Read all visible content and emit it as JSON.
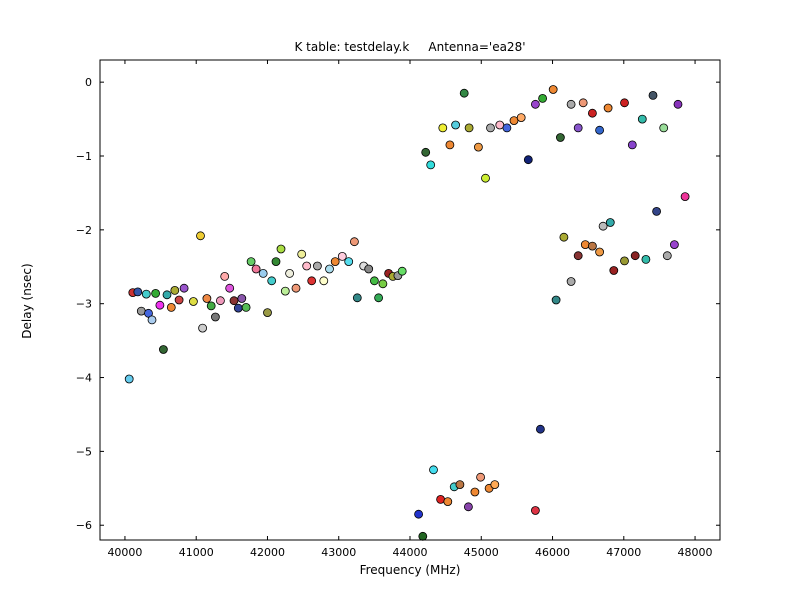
{
  "figure": {
    "title": "K table: testdelay.k     Antenna='ea28'",
    "background_color": "#ffffff",
    "frame_color": "#000000"
  },
  "chart_data": {
    "type": "scatter",
    "title": "K table: testdelay.k     Antenna='ea28'",
    "xlabel": "Frequency (MHz)",
    "ylabel": "Delay (nsec)",
    "xlim": [
      39650,
      48350
    ],
    "ylim": [
      -6.2,
      0.3
    ],
    "grid": false,
    "legend": null,
    "marker": {
      "shape": "circle",
      "radius_px": 4,
      "edge_color": "#000000"
    },
    "xticks": {
      "values": [
        40000,
        41000,
        42000,
        43000,
        44000,
        45000,
        46000,
        47000,
        48000
      ],
      "labels": [
        "40000",
        "41000",
        "42000",
        "43000",
        "44000",
        "45000",
        "46000",
        "47000",
        "48000"
      ]
    },
    "yticks": {
      "values": [
        0,
        -1,
        -2,
        -3,
        -4,
        -5,
        -6
      ],
      "labels": [
        "0",
        "−1",
        "−2",
        "−3",
        "−4",
        "−5",
        "−6"
      ]
    },
    "points": [
      [
        40060,
        -4.02,
        "#66ccee"
      ],
      [
        40110,
        -2.85,
        "#cc3333"
      ],
      [
        40180,
        -2.84,
        "#3355aa"
      ],
      [
        40230,
        -3.1,
        "#999999"
      ],
      [
        40300,
        -2.87,
        "#44cccc"
      ],
      [
        40330,
        -3.13,
        "#4466dd"
      ],
      [
        40380,
        -3.22,
        "#aaccee"
      ],
      [
        40430,
        -2.86,
        "#33aa33"
      ],
      [
        40490,
        -3.02,
        "#ee33ee"
      ],
      [
        40540,
        -3.62,
        "#336633"
      ],
      [
        40590,
        -2.88,
        "#33aaaa"
      ],
      [
        40650,
        -3.05,
        "#ee8833"
      ],
      [
        40700,
        -2.82,
        "#aaaa33"
      ],
      [
        40760,
        -2.95,
        "#cc4444"
      ],
      [
        40830,
        -2.79,
        "#9955cc"
      ],
      [
        40960,
        -2.97,
        "#dddd44"
      ],
      [
        41060,
        -2.08,
        "#eecc33"
      ],
      [
        41090,
        -3.33,
        "#cccccc"
      ],
      [
        41150,
        -2.93,
        "#ee8844"
      ],
      [
        41210,
        -3.03,
        "#44aa44"
      ],
      [
        41270,
        -3.18,
        "#777777"
      ],
      [
        41340,
        -2.96,
        "#ee99bb"
      ],
      [
        41400,
        -2.63,
        "#ffaaaa"
      ],
      [
        41470,
        -2.79,
        "#dd55dd"
      ],
      [
        41530,
        -2.96,
        "#883333"
      ],
      [
        41590,
        -3.06,
        "#334499"
      ],
      [
        41640,
        -2.93,
        "#8855aa"
      ],
      [
        41700,
        -3.05,
        "#55bb55"
      ],
      [
        41770,
        -2.43,
        "#66cc66"
      ],
      [
        41840,
        -2.53,
        "#ee7799"
      ],
      [
        41940,
        -2.59,
        "#99ccee"
      ],
      [
        42000,
        -3.12,
        "#999944"
      ],
      [
        42060,
        -2.69,
        "#44cccc"
      ],
      [
        42120,
        -2.43,
        "#338833"
      ],
      [
        42190,
        -2.26,
        "#aadd44"
      ],
      [
        42250,
        -2.83,
        "#bbee99"
      ],
      [
        42310,
        -2.59,
        "#eeeedd"
      ],
      [
        42400,
        -2.79,
        "#ee9977"
      ],
      [
        42480,
        -2.33,
        "#eeee99"
      ],
      [
        42550,
        -2.49,
        "#ffbbcc"
      ],
      [
        42620,
        -2.69,
        "#dd3333"
      ],
      [
        42700,
        -2.49,
        "#aaaaaa"
      ],
      [
        42790,
        -2.69,
        "#ffffcc"
      ],
      [
        42870,
        -2.53,
        "#aaddee"
      ],
      [
        42950,
        -2.43,
        "#ee8833"
      ],
      [
        43050,
        -2.36,
        "#ffccdd"
      ],
      [
        43140,
        -2.43,
        "#55ddee"
      ],
      [
        43220,
        -2.16,
        "#ee9977"
      ],
      [
        43260,
        -2.92,
        "#338888"
      ],
      [
        43350,
        -2.49,
        "#dddddd"
      ],
      [
        43420,
        -2.53,
        "#888888"
      ],
      [
        43500,
        -2.69,
        "#44bb44"
      ],
      [
        43560,
        -2.92,
        "#33aa55"
      ],
      [
        43620,
        -2.73,
        "#77cc44"
      ],
      [
        43700,
        -2.59,
        "#992222"
      ],
      [
        43760,
        -2.63,
        "#aaaa33"
      ],
      [
        43830,
        -2.62,
        "#999999"
      ],
      [
        43890,
        -2.56,
        "#66dd66"
      ],
      [
        44120,
        -5.85,
        "#2233cc"
      ],
      [
        44180,
        -6.15,
        "#226622"
      ],
      [
        44330,
        -5.25,
        "#44ddee"
      ],
      [
        44430,
        -5.65,
        "#dd2222"
      ],
      [
        44530,
        -5.68,
        "#ee8833"
      ],
      [
        44620,
        -5.48,
        "#44cccc"
      ],
      [
        44700,
        -5.45,
        "#bb7744"
      ],
      [
        44820,
        -5.75,
        "#8844aa"
      ],
      [
        44910,
        -5.55,
        "#ee8833"
      ],
      [
        44990,
        -5.35,
        "#ee9977"
      ],
      [
        45110,
        -5.5,
        "#ee8833"
      ],
      [
        45190,
        -5.45,
        "#ffaa55"
      ],
      [
        45760,
        -5.8,
        "#dd3344"
      ],
      [
        45830,
        -4.7,
        "#223388"
      ],
      [
        44220,
        -0.95,
        "#336633"
      ],
      [
        44290,
        -1.12,
        "#33dddd"
      ],
      [
        44460,
        -0.62,
        "#eeee33"
      ],
      [
        44560,
        -0.85,
        "#ee8833"
      ],
      [
        44640,
        -0.58,
        "#55ccdd"
      ],
      [
        44760,
        -0.15,
        "#338844"
      ],
      [
        44830,
        -0.62,
        "#aaaa33"
      ],
      [
        44960,
        -0.88,
        "#ee9944"
      ],
      [
        45060,
        -1.3,
        "#ccee33"
      ],
      [
        45130,
        -0.62,
        "#aaaaaa"
      ],
      [
        45260,
        -0.58,
        "#ffbbcc"
      ],
      [
        45360,
        -0.62,
        "#4466dd"
      ],
      [
        45460,
        -0.52,
        "#ee8833"
      ],
      [
        45560,
        -0.48,
        "#ffaa66"
      ],
      [
        45660,
        -1.05,
        "#112277"
      ],
      [
        45760,
        -0.3,
        "#9944cc"
      ],
      [
        45860,
        -0.22,
        "#33aa33"
      ],
      [
        46010,
        -0.1,
        "#ee8833"
      ],
      [
        46110,
        -0.75,
        "#336633"
      ],
      [
        46260,
        -0.3,
        "#aaaaaa"
      ],
      [
        46360,
        -0.62,
        "#8855cc"
      ],
      [
        46430,
        -0.28,
        "#ee9977"
      ],
      [
        46560,
        -0.42,
        "#cc2222"
      ],
      [
        46660,
        -0.65,
        "#3366cc"
      ],
      [
        46780,
        -0.35,
        "#ee8833"
      ],
      [
        47010,
        -0.28,
        "#cc2222"
      ],
      [
        47120,
        -0.85,
        "#8844cc"
      ],
      [
        47260,
        -0.5,
        "#33bbaa"
      ],
      [
        47410,
        -0.18,
        "#445566"
      ],
      [
        47560,
        -0.62,
        "#99dd99"
      ],
      [
        47760,
        -0.3,
        "#8833bb"
      ],
      [
        46050,
        -2.95,
        "#338888"
      ],
      [
        46160,
        -2.1,
        "#aaaa33"
      ],
      [
        46260,
        -2.7,
        "#aaaaaa"
      ],
      [
        46360,
        -2.35,
        "#883333"
      ],
      [
        46460,
        -2.2,
        "#ee8833"
      ],
      [
        46560,
        -2.22,
        "#bb7744"
      ],
      [
        46660,
        -2.3,
        "#ee9944"
      ],
      [
        46710,
        -1.95,
        "#bbbbbb"
      ],
      [
        46810,
        -1.9,
        "#33aaaa"
      ],
      [
        46860,
        -2.55,
        "#992222"
      ],
      [
        47010,
        -2.42,
        "#999933"
      ],
      [
        47160,
        -2.35,
        "#882222"
      ],
      [
        47310,
        -2.4,
        "#33bbaa"
      ],
      [
        47460,
        -1.75,
        "#334488"
      ],
      [
        47610,
        -2.35,
        "#aaaaaa"
      ],
      [
        47710,
        -2.2,
        "#9944cc"
      ],
      [
        47860,
        -1.55,
        "#ee3399"
      ]
    ]
  }
}
